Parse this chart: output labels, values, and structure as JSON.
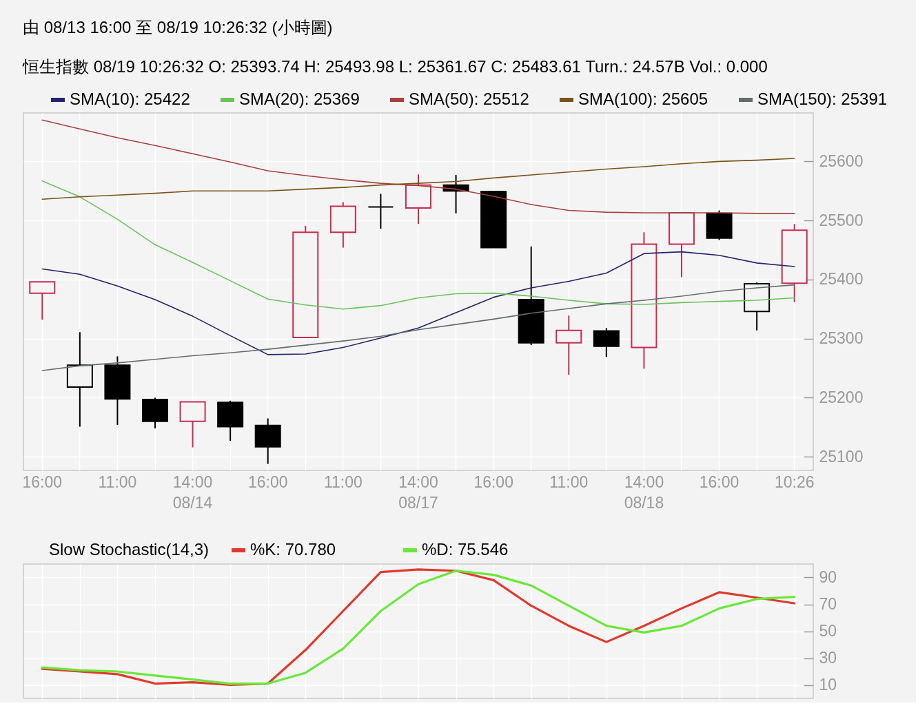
{
  "chart_data": [
    {
      "type": "candlestick",
      "title": "由  08/13 16:00 至  08/19 10:26:32 (小時圖)",
      "subtitle": "恒生指數 08/19 10:26:32 O: 25393.74 H: 25493.98 L: 25361.67 C: 25483.61 Turn.: 24.57B   Vol.: 0.000",
      "categories": [
        "16:00",
        null,
        "11:00",
        null,
        "14:00\n08/14",
        null,
        "16:00",
        null,
        "11:00",
        null,
        "14:00\n08/17",
        null,
        "16:00",
        null,
        "11:00",
        null,
        "14:00\n08/18",
        null,
        "16:00",
        null,
        "10:26"
      ],
      "ohlc": [
        [
          25377,
          25396,
          25332,
          25396
        ],
        [
          25218,
          25311,
          25151,
          25255
        ],
        [
          25255,
          25270,
          25154,
          25198
        ],
        [
          25197,
          25200,
          25148,
          25160
        ],
        [
          25160,
          25193,
          25116,
          25193
        ],
        [
          25192,
          25195,
          25127,
          25151
        ],
        [
          25153,
          25165,
          25088,
          25117
        ],
        [
          25302,
          25491,
          25302,
          25480
        ],
        [
          25480,
          25531,
          25454,
          25524
        ],
        [
          25523,
          25545,
          25486,
          25523
        ],
        [
          25521,
          25578,
          25494,
          25560
        ],
        [
          25560,
          25577,
          25512,
          25550
        ],
        [
          25549,
          25550,
          25454,
          25454
        ],
        [
          25366,
          25456,
          25289,
          25293
        ],
        [
          25293,
          25339,
          25239,
          25314
        ],
        [
          25313,
          25318,
          25269,
          25287
        ],
        [
          25285,
          25480,
          25249,
          25460
        ],
        [
          25460,
          25513,
          25404,
          25513
        ],
        [
          25512,
          25517,
          25467,
          25470
        ],
        [
          25346,
          25395,
          25314,
          25393
        ],
        [
          25393.74,
          25493.98,
          25361.67,
          25483.61
        ]
      ],
      "colors": [
        "#c62d50",
        "#000000",
        "#000000",
        "#000000",
        "#c62d50",
        "#000000",
        "#000000",
        "#c62d50",
        "#c62d50",
        "#000000",
        "#c62d50",
        "#000000",
        "#000000",
        "#000000",
        "#c62d50",
        "#000000",
        "#c62d50",
        "#c62d50",
        "#000000",
        "#000000",
        "#c62d50"
      ],
      "series": [
        {
          "name": "SMA(10): 25422",
          "type": "line",
          "color": "#24236e",
          "values": [
            25418,
            25409,
            25389,
            25366,
            25338,
            25305,
            25273,
            25274,
            25285,
            25301,
            25318,
            25344,
            25370,
            25386,
            25397,
            25411,
            25444,
            25447,
            25441,
            25428,
            25422
          ]
        },
        {
          "name": "SMA(20): 25369",
          "type": "line",
          "color": "#6cc15f",
          "values": [
            25567,
            25540,
            25502,
            25459,
            25429,
            25398,
            25367,
            25357,
            25350,
            25356,
            25369,
            25376,
            25377,
            25372,
            25365,
            25359,
            25358,
            25361,
            25363,
            25365,
            25369
          ]
        },
        {
          "name": "SMA(50): 25512",
          "type": "line",
          "color": "#a8403f",
          "values": [
            25670,
            25655,
            25640,
            25627,
            25613,
            25599,
            25584,
            25576,
            25569,
            25563,
            25559,
            25553,
            25541,
            25527,
            25517,
            25514,
            25513,
            25513,
            25513,
            25512,
            25512
          ]
        },
        {
          "name": "SMA(100): 25605",
          "type": "line",
          "color": "#7c5218",
          "values": [
            25536,
            25540,
            25543,
            25546,
            25550,
            25550,
            25550,
            25553,
            25556,
            25560,
            25563,
            25566,
            25572,
            25577,
            25582,
            25587,
            25591,
            25596,
            25600,
            25602,
            25605
          ]
        },
        {
          "name": "SMA(150): 25391",
          "type": "line",
          "color": "#5f6f6c",
          "values": [
            25246,
            25254,
            25259,
            25265,
            25271,
            25276,
            25282,
            25289,
            25296,
            25304,
            25315,
            25324,
            25333,
            25343,
            25351,
            25359,
            25365,
            25372,
            25380,
            25386,
            25391
          ]
        }
      ],
      "ylim": [
        25077,
        25682
      ],
      "yticks": [
        25100,
        25200,
        25300,
        25400,
        25500,
        25600
      ],
      "grid": true,
      "legend": "top"
    },
    {
      "type": "line",
      "title": "Slow Stochastic(14,3)",
      "categories": [
        null,
        null,
        null,
        null,
        null,
        null,
        null,
        null,
        null,
        null,
        null,
        null,
        null,
        null,
        null,
        null,
        null,
        null,
        null,
        null,
        null
      ],
      "series": [
        {
          "name": "%K: 70.780",
          "color": "#e0392e",
          "values": [
            22,
            20,
            18,
            11,
            12,
            10,
            11,
            36,
            65,
            94,
            96,
            95,
            88,
            69,
            54,
            42,
            54,
            67,
            79,
            75,
            70.78
          ]
        },
        {
          "name": "%D: 75.546",
          "color": "#69e83a",
          "values": [
            23,
            21,
            20,
            17,
            14,
            11,
            11,
            19,
            37,
            65,
            85,
            95,
            92,
            84,
            69,
            54,
            49,
            54,
            67,
            74,
            75.546
          ]
        }
      ],
      "ylim": [
        0,
        100
      ],
      "yticks": [
        10,
        30,
        50,
        70,
        90
      ],
      "grid": true,
      "legend": "top"
    }
  ]
}
